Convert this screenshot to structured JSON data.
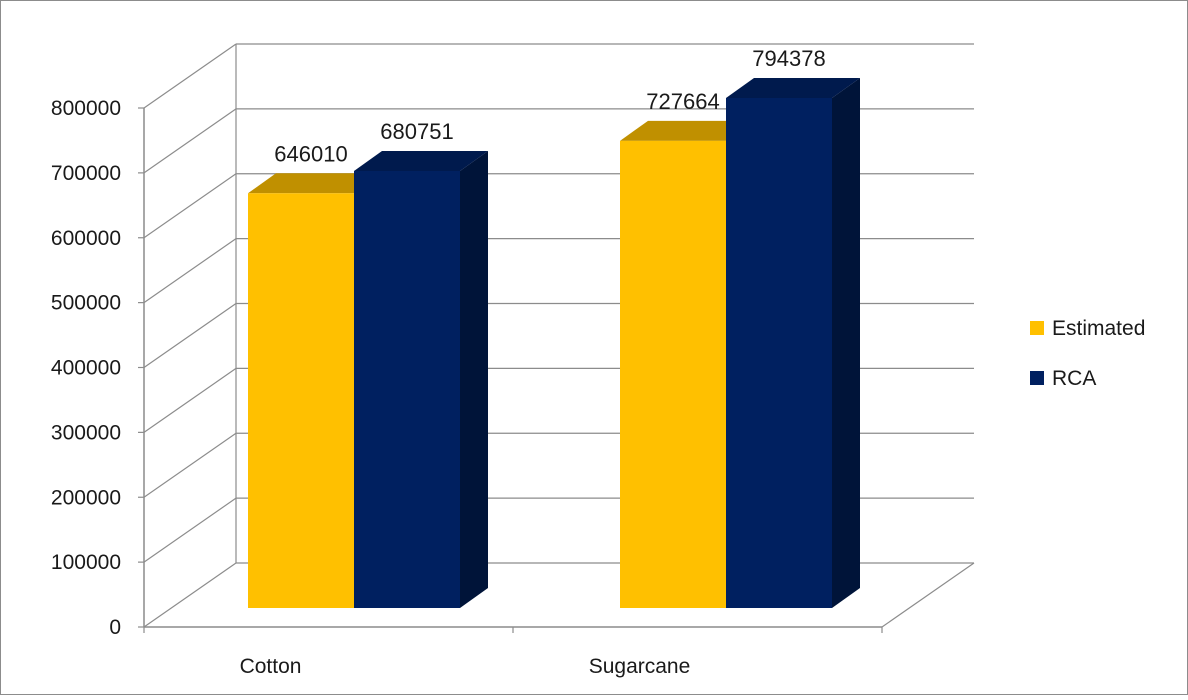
{
  "chart_data": {
    "type": "bar",
    "title": "",
    "xlabel": "",
    "ylabel": "",
    "ylim": [
      0,
      800000
    ],
    "yticks": [
      0,
      100000,
      200000,
      300000,
      400000,
      500000,
      600000,
      700000,
      800000
    ],
    "ytick_labels": [
      "0",
      "100000",
      "200000",
      "300000",
      "400000",
      "500000",
      "600000",
      "700000",
      "800000"
    ],
    "categories": [
      "Cotton",
      "Sugarcane"
    ],
    "series": [
      {
        "name": "Estimated",
        "values": [
          646010,
          727664
        ],
        "labels": [
          "646010",
          "727664"
        ],
        "color": "#FFC000",
        "top_color": "#C09000",
        "side_color": "#BF9000"
      },
      {
        "name": "RCA",
        "values": [
          680751,
          794378
        ],
        "labels": [
          "680751",
          "794378"
        ],
        "color": "#002060",
        "top_color": "#001A4D",
        "side_color": "#001439"
      }
    ],
    "grid": true,
    "three_d": true,
    "legend_position": "right"
  }
}
